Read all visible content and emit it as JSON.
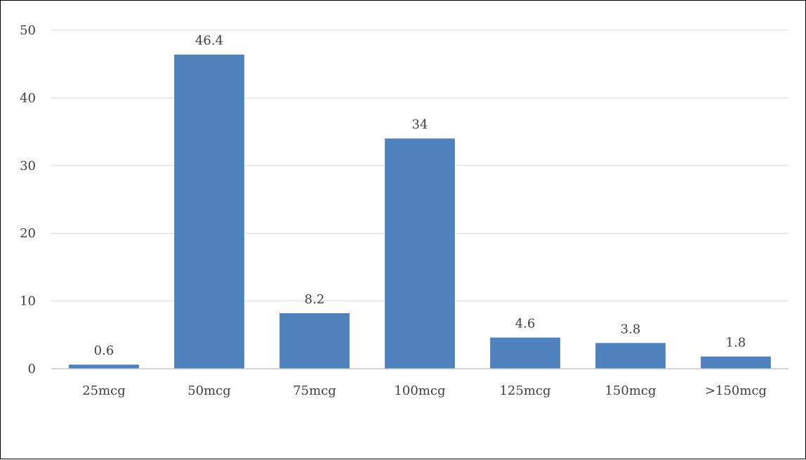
{
  "chart_data": {
    "type": "bar",
    "title": "",
    "xlabel": "",
    "ylabel": "",
    "categories": [
      "25mcg",
      "50mcg",
      "75mcg",
      "100mcg",
      "125mcg",
      "150mcg",
      ">150mcg"
    ],
    "values": [
      0.6,
      46.4,
      8.2,
      34,
      4.6,
      3.8,
      1.8
    ],
    "data_labels": [
      "0.6",
      "46.4",
      "8.2",
      "34",
      "4.6",
      "3.8",
      "1.8"
    ],
    "ylim": [
      0,
      50
    ],
    "yticks": [
      0,
      10,
      20,
      30,
      40,
      50
    ],
    "ytick_labels": [
      "0",
      "10",
      "20",
      "30",
      "40",
      "50"
    ],
    "grid": true,
    "legend": "none",
    "colors": {
      "bar": "#4F81BD",
      "grid": "#D9D9D9",
      "axis": "#BFBFBF",
      "text": "#404040",
      "border": "#000000"
    }
  }
}
